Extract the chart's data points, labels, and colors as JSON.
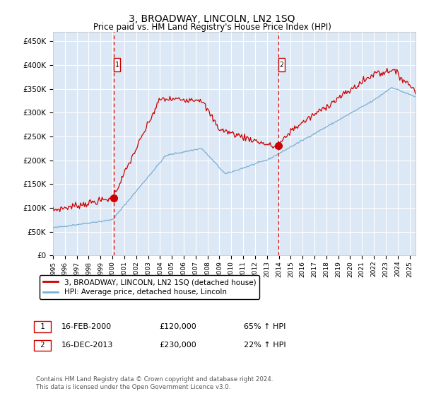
{
  "title": "3, BROADWAY, LINCOLN, LN2 1SQ",
  "subtitle": "Price paid vs. HM Land Registry's House Price Index (HPI)",
  "hpi_label": "HPI: Average price, detached house, Lincoln",
  "property_label": "3, BROADWAY, LINCOLN, LN2 1SQ (detached house)",
  "transaction1": {
    "date": "16-FEB-2000",
    "price": 120000,
    "hpi_change": "65% ↑ HPI"
  },
  "transaction2": {
    "date": "16-DEC-2013",
    "price": 230000,
    "hpi_change": "22% ↑ HPI"
  },
  "marker1_x": 2000.12,
  "marker2_x": 2013.96,
  "hpi_line_color": "#7bafd4",
  "property_line_color": "#cc0000",
  "marker_color": "#cc0000",
  "background_color": "#dce8f5",
  "plot_bg_color": "#dce8f5",
  "grid_color": "#ffffff",
  "ylim": [
    0,
    470000
  ],
  "xlim_start": 1995,
  "xlim_end": 2025.5,
  "footnote": "Contains HM Land Registry data © Crown copyright and database right 2024.\nThis data is licensed under the Open Government Licence v3.0."
}
